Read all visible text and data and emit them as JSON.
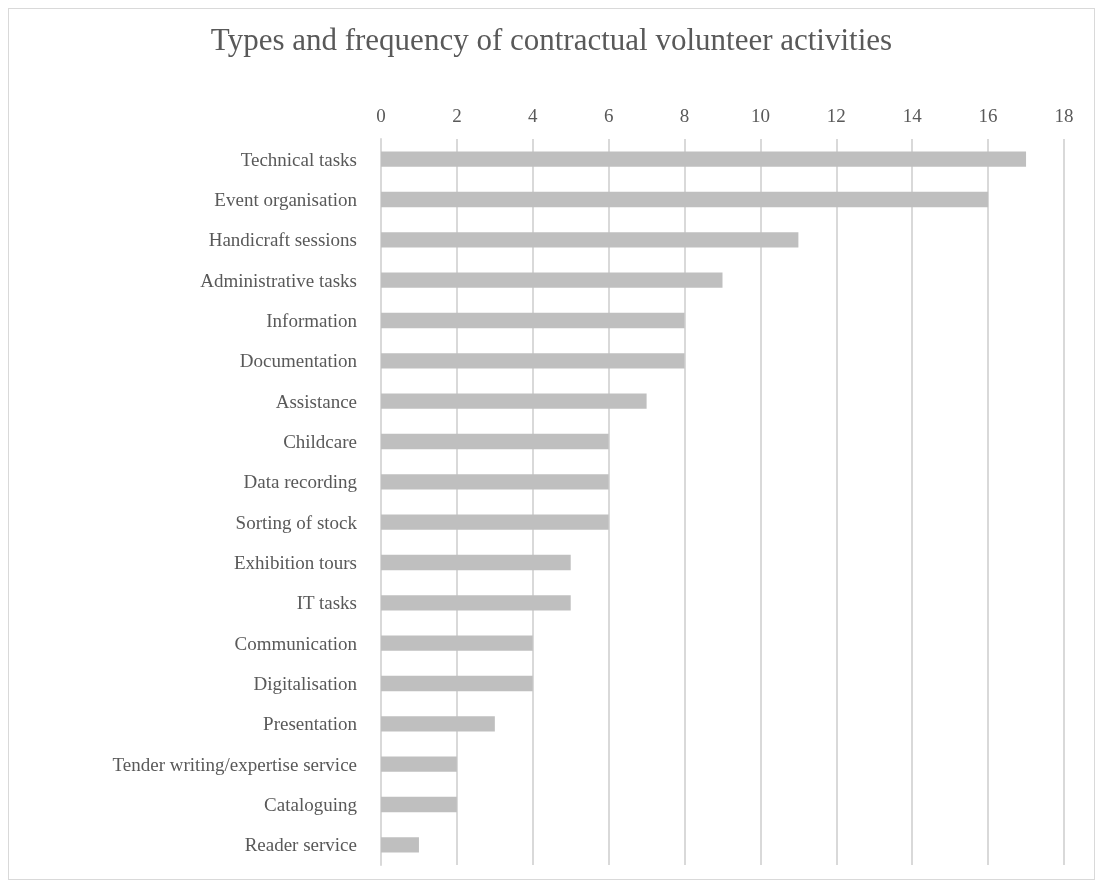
{
  "chart_data": {
    "type": "bar",
    "orientation": "horizontal",
    "title": "Types and frequency of contractual volunteer activities",
    "categories": [
      "Technical tasks",
      "Event organisation",
      "Handicraft sessions",
      "Administrative tasks",
      "Information",
      "Documentation",
      "Assistance",
      "Childcare",
      "Data recording",
      "Sorting of stock",
      "Exhibition tours",
      "IT tasks",
      "Communication",
      "Digitalisation",
      "Presentation",
      "Tender writing/expertise service",
      "Cataloguing",
      "Reader service"
    ],
    "values": [
      17,
      16,
      11,
      9,
      8,
      8,
      7,
      6,
      6,
      6,
      5,
      5,
      4,
      4,
      3,
      2,
      2,
      1
    ],
    "color": "#bfbfbf",
    "xlim": [
      0,
      18
    ],
    "xticks": [
      0,
      2,
      4,
      6,
      8,
      10,
      12,
      14,
      16,
      18
    ],
    "grid": "x"
  }
}
